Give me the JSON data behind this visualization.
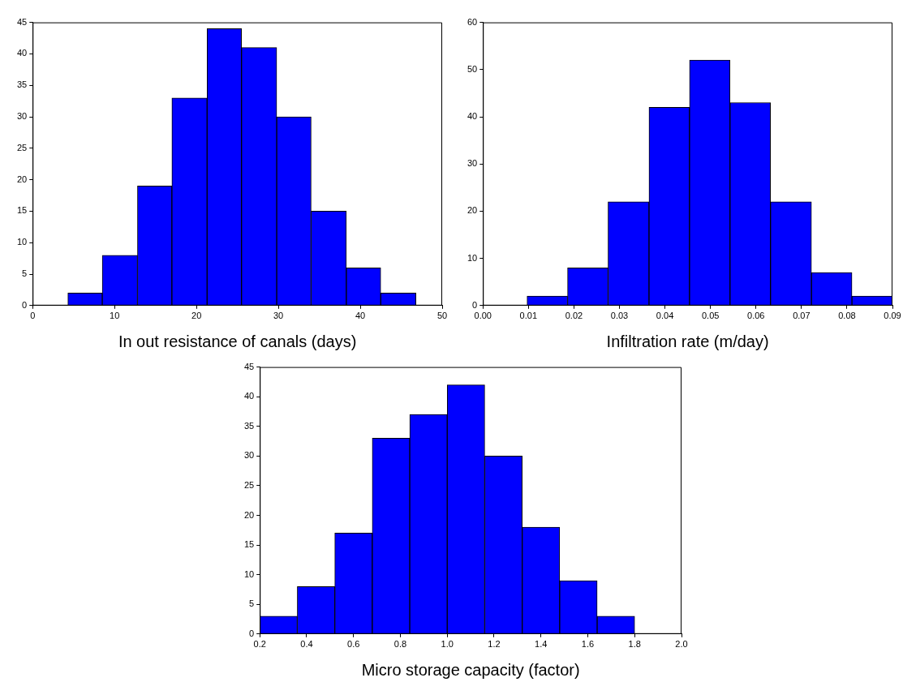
{
  "chart_data": [
    {
      "type": "histogram",
      "xlabel": "In out resistance of canals (days)",
      "bins": [
        4.3,
        8.5,
        12.8,
        17.0,
        21.3,
        25.5,
        29.8,
        34.0,
        38.3,
        42.5,
        46.8
      ],
      "values": [
        2,
        8,
        19,
        33,
        44,
        41,
        30,
        15,
        6,
        2
      ],
      "color": "#0000ff",
      "xlim": [
        0,
        50
      ],
      "xticks": [
        0,
        10,
        20,
        30,
        40,
        50
      ],
      "ylim": [
        0,
        45
      ],
      "yticks": [
        0,
        5,
        10,
        15,
        20,
        25,
        30,
        35,
        40,
        45
      ],
      "grid": false,
      "legend": false
    },
    {
      "type": "histogram",
      "xlabel": "Infiltration rate (m/day)",
      "bins": [
        0.0097,
        0.0186,
        0.0275,
        0.0365,
        0.0454,
        0.0543,
        0.0632,
        0.0722,
        0.0811,
        0.09
      ],
      "values": [
        2,
        8,
        22,
        42,
        52,
        43,
        22,
        7,
        2
      ],
      "color": "#0000ff",
      "xlim": [
        0,
        0.09
      ],
      "xticks": [
        {
          "value": 0,
          "label": "0.00"
        },
        {
          "value": 0.01,
          "label": "0.01"
        },
        {
          "value": 0.02,
          "label": "0.02"
        },
        {
          "value": 0.03,
          "label": "0.03"
        },
        {
          "value": 0.04,
          "label": "0.04"
        },
        {
          "value": 0.05,
          "label": "0.05"
        },
        {
          "value": 0.06,
          "label": "0.06"
        },
        {
          "value": 0.07,
          "label": "0.07"
        },
        {
          "value": 0.08,
          "label": "0.08"
        },
        {
          "value": 0.09,
          "label": "0.09"
        }
      ],
      "ylim": [
        0,
        60
      ],
      "yticks": [
        0,
        10,
        20,
        30,
        40,
        50,
        60
      ],
      "grid": false,
      "legend": false
    },
    {
      "type": "histogram",
      "xlabel": "Micro storage capacity (factor)",
      "bins": [
        0.2,
        0.36,
        0.52,
        0.68,
        0.84,
        1.0,
        1.16,
        1.32,
        1.48,
        1.64,
        1.8
      ],
      "values": [
        3,
        8,
        17,
        33,
        37,
        42,
        30,
        18,
        9,
        3
      ],
      "color": "#0000ff",
      "xlim": [
        0.2,
        2.0
      ],
      "xticks": [
        {
          "value": 0.2,
          "label": "0.2"
        },
        {
          "value": 0.4,
          "label": "0.4"
        },
        {
          "value": 0.6,
          "label": "0.6"
        },
        {
          "value": 0.8,
          "label": "0.8"
        },
        {
          "value": 1.0,
          "label": "1.0"
        },
        {
          "value": 1.2,
          "label": "1.2"
        },
        {
          "value": 1.4,
          "label": "1.4"
        },
        {
          "value": 1.6,
          "label": "1.6"
        },
        {
          "value": 1.8,
          "label": "1.8"
        },
        {
          "value": 2.0,
          "label": "2.0"
        }
      ],
      "ylim": [
        0,
        45
      ],
      "yticks": [
        0,
        5,
        10,
        15,
        20,
        25,
        30,
        35,
        40,
        45
      ],
      "grid": false,
      "legend": false
    }
  ]
}
